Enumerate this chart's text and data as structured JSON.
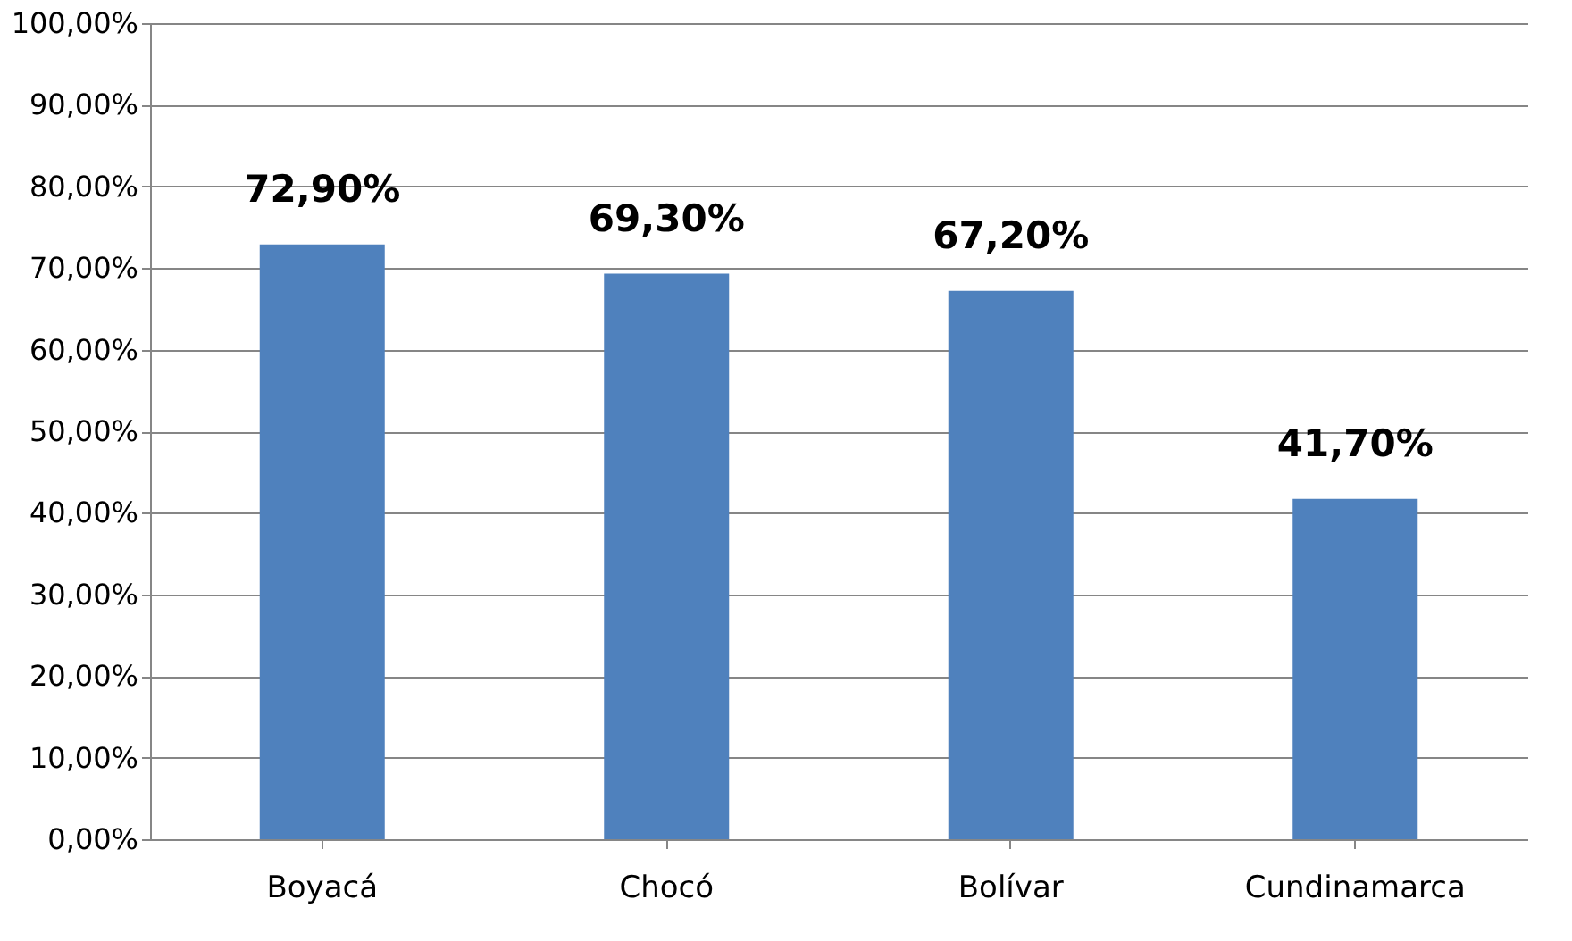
{
  "chart_data": {
    "type": "bar",
    "categories": [
      "Boyacá",
      "Chocó",
      "Bolívar",
      "Cundinamarca"
    ],
    "values": [
      72.9,
      69.3,
      67.2,
      41.7
    ],
    "value_labels": [
      "72,90%",
      "69,30%",
      "67,20%",
      "41,70%"
    ],
    "color": "#4f81bd",
    "ylim": [
      0,
      100
    ],
    "yticks": [
      {
        "value": 0,
        "label": "0,00%"
      },
      {
        "value": 10,
        "label": "10,00%"
      },
      {
        "value": 20,
        "label": "20,00%"
      },
      {
        "value": 30,
        "label": "30,00%"
      },
      {
        "value": 40,
        "label": "40,00%"
      },
      {
        "value": 50,
        "label": "50,00%"
      },
      {
        "value": 60,
        "label": "60,00%"
      },
      {
        "value": 70,
        "label": "70,00%"
      },
      {
        "value": 80,
        "label": "80,00%"
      },
      {
        "value": 90,
        "label": "90,00%"
      },
      {
        "value": 100,
        "label": "100,00%"
      }
    ],
    "grid": true
  }
}
